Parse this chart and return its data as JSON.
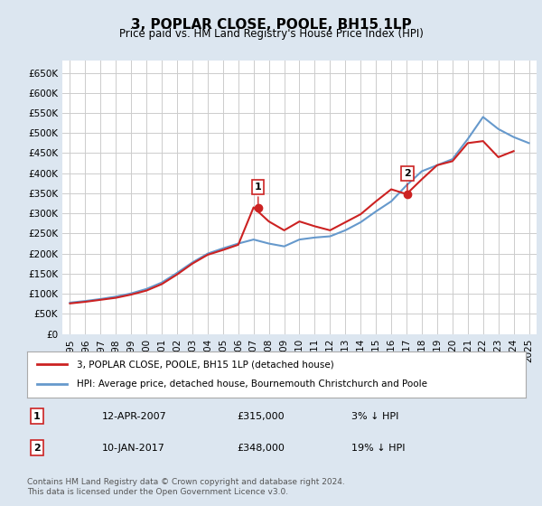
{
  "title": "3, POPLAR CLOSE, POOLE, BH15 1LP",
  "subtitle": "Price paid vs. HM Land Registry's House Price Index (HPI)",
  "legend_line1": "3, POPLAR CLOSE, POOLE, BH15 1LP (detached house)",
  "legend_line2": "HPI: Average price, detached house, Bournemouth Christchurch and Poole",
  "annotation1_label": "1",
  "annotation1_date": "12-APR-2007",
  "annotation1_price": "£315,000",
  "annotation1_hpi": "3% ↓ HPI",
  "annotation2_label": "2",
  "annotation2_date": "10-JAN-2017",
  "annotation2_price": "£348,000",
  "annotation2_hpi": "19% ↓ HPI",
  "footer": "Contains HM Land Registry data © Crown copyright and database right 2024.\nThis data is licensed under the Open Government Licence v3.0.",
  "hpi_color": "#6699cc",
  "price_color": "#cc2222",
  "background_color": "#dce6f0",
  "plot_bg_color": "#ffffff",
  "ylim": [
    0,
    680000
  ],
  "yticks": [
    0,
    50000,
    100000,
    150000,
    200000,
    250000,
    300000,
    350000,
    400000,
    450000,
    500000,
    550000,
    600000,
    650000
  ],
  "ytick_labels": [
    "£0",
    "£50K",
    "£100K",
    "£150K",
    "£200K",
    "£250K",
    "£300K",
    "£350K",
    "£400K",
    "£450K",
    "£500K",
    "£550K",
    "£600K",
    "£650K"
  ],
  "hpi_years": [
    1995,
    1996,
    1997,
    1998,
    1999,
    2000,
    2001,
    2002,
    2003,
    2004,
    2005,
    2006,
    2007,
    2008,
    2009,
    2010,
    2011,
    2012,
    2013,
    2014,
    2015,
    2016,
    2017,
    2018,
    2019,
    2020,
    2021,
    2022,
    2023,
    2024,
    2025
  ],
  "hpi_values": [
    78000,
    82000,
    87000,
    93000,
    101000,
    112000,
    128000,
    152000,
    178000,
    200000,
    213000,
    225000,
    235000,
    225000,
    218000,
    235000,
    240000,
    243000,
    258000,
    278000,
    305000,
    330000,
    370000,
    405000,
    420000,
    435000,
    485000,
    540000,
    510000,
    490000,
    475000
  ],
  "price_years": [
    1995,
    1996,
    1997,
    1998,
    1999,
    2000,
    2001,
    2002,
    2003,
    2004,
    2005,
    2006,
    2007,
    2008,
    2009,
    2010,
    2011,
    2012,
    2013,
    2014,
    2015,
    2016,
    2017,
    2018,
    2019,
    2020,
    2021,
    2022,
    2023,
    2024
  ],
  "price_values": [
    76000,
    80000,
    85000,
    90000,
    98000,
    108000,
    124000,
    148000,
    175000,
    197000,
    209000,
    222000,
    315000,
    280000,
    258000,
    280000,
    268000,
    258000,
    278000,
    298000,
    330000,
    360000,
    348000,
    385000,
    420000,
    430000,
    475000,
    480000,
    440000,
    455000
  ],
  "sale1_x": 2007.3,
  "sale1_y": 315000,
  "sale2_x": 2017.05,
  "sale2_y": 348000,
  "xtick_years": [
    1995,
    1996,
    1997,
    1998,
    1999,
    2000,
    2001,
    2002,
    2003,
    2004,
    2005,
    2006,
    2007,
    2008,
    2009,
    2010,
    2011,
    2012,
    2013,
    2014,
    2015,
    2016,
    2017,
    2018,
    2019,
    2020,
    2021,
    2022,
    2023,
    2024,
    2025
  ]
}
